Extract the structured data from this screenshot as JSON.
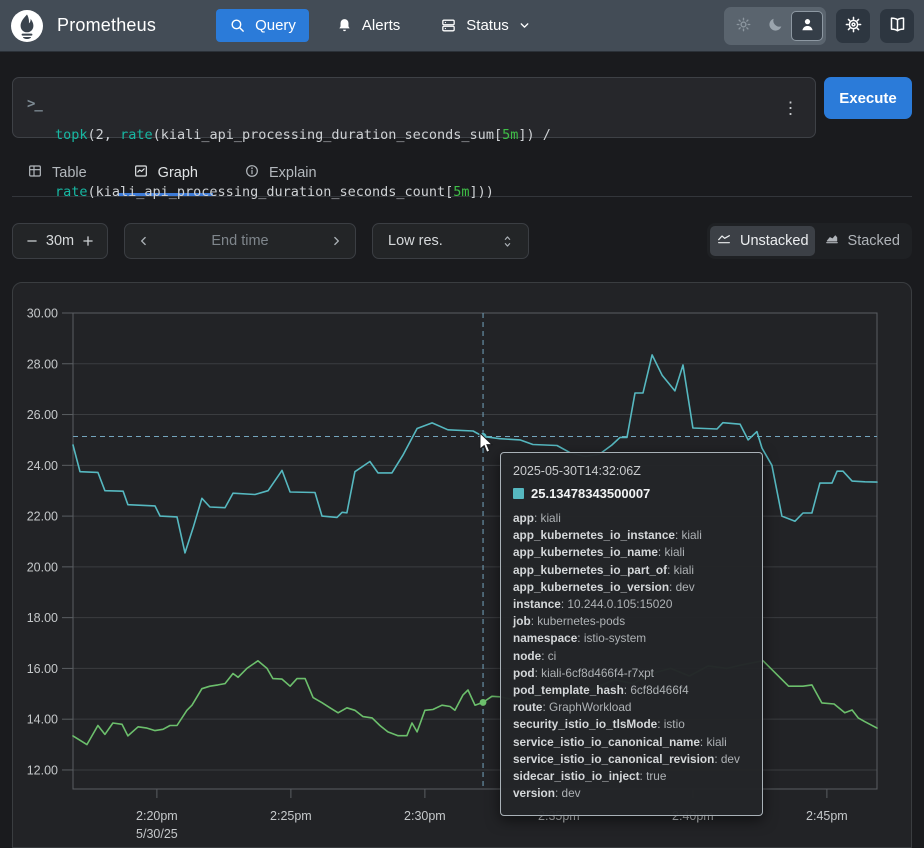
{
  "navbar": {
    "brand": "Prometheus",
    "query_label": "Query",
    "alerts_label": "Alerts",
    "status_label": "Status"
  },
  "icons": {
    "logo": "prometheus-torch",
    "query": "magnifier",
    "alerts": "bell",
    "status": "server-stack",
    "status_caret": "chevron-down",
    "theme_light": "sun",
    "theme_dark": "moon",
    "theme_user": "user-silhouette",
    "settings": "gear",
    "docs": "open-book",
    "editor_prompt": "terminal-prompt",
    "editor_menu": "kebab-vertical",
    "tab_table": "table-grid",
    "tab_graph": "chart-line-box",
    "tab_explain": "info-circle",
    "duration_minus": "minus",
    "duration_plus": "plus",
    "end_time_prev": "chevron-left",
    "end_time_next": "chevron-right",
    "resolution": "chevron-up-down",
    "unstacked": "line-chart",
    "stacked": "area-chart"
  },
  "colors": {
    "page_bg": "#1a1b1e",
    "navbar_bg": "#434c56",
    "accent_blue": "#2b7bd9",
    "tab_underline": "#3d7bd8",
    "series_teal": "#56b8c0",
    "series_green": "#6cbf6c",
    "crosshair": "#74a5bd",
    "code_function": "#17b8a3",
    "code_duration": "#3fbf47"
  },
  "query_panel": {
    "prompt": ">_",
    "expression": "topk(2, rate(kiali_api_processing_duration_seconds_sum[5m]) / rate(kiali_api_processing_duration_seconds_count[5m]))",
    "lines": [
      [
        {
          "t": "topk",
          "c": "fn"
        },
        {
          "t": "(",
          "c": "p"
        },
        {
          "t": "2",
          "c": "p"
        },
        {
          "t": ", ",
          "c": "p"
        },
        {
          "t": "rate",
          "c": "fn"
        },
        {
          "t": "(kiali_api_processing_duration_seconds_sum[",
          "c": "p"
        },
        {
          "t": "5m",
          "c": "dur"
        },
        {
          "t": "]) /",
          "c": "p"
        }
      ],
      [
        {
          "t": "rate",
          "c": "fn"
        },
        {
          "t": "(kiali_api_processing_duration_seconds_count[",
          "c": "p"
        },
        {
          "t": "5m",
          "c": "dur"
        },
        {
          "t": "]))",
          "c": "p"
        }
      ]
    ],
    "menu_glyph": "⋮",
    "execute_label": "Execute"
  },
  "tabs": {
    "table": "Table",
    "graph": "Graph",
    "explain": "Explain",
    "active": "Graph"
  },
  "controls": {
    "minus": "−",
    "duration": "30m",
    "plus": "+",
    "end_time_placeholder": "End time",
    "resolution": "Low res.",
    "unstacked": "Unstacked",
    "stacked": "Stacked",
    "stack_mode": "Unstacked"
  },
  "chart_data": {
    "type": "line",
    "x_axis_date": "5/30/25",
    "x_ticks": [
      {
        "label": "2:20pm",
        "t": 3.13
      },
      {
        "label": "2:25pm",
        "t": 8.13
      },
      {
        "label": "2:30pm",
        "t": 13.13
      },
      {
        "label": "2:35pm",
        "t": 18.13
      },
      {
        "label": "2:40pm",
        "t": 23.13
      },
      {
        "label": "2:45pm",
        "t": 28.13
      }
    ],
    "y_ticks": [
      "30.00",
      "28.00",
      "26.00",
      "24.00",
      "22.00",
      "20.00",
      "18.00",
      "16.00",
      "14.00",
      "12.00"
    ],
    "x_range_minutes": 30,
    "ylim": [
      11.25,
      30.0
    ],
    "grid": true,
    "legend": "none",
    "series": [
      {
        "name": "series-teal",
        "color": "#56b8c0",
        "points": [
          [
            0,
            24.8
          ],
          [
            0.26,
            23.75
          ],
          [
            0.93,
            23.72
          ],
          [
            1.19,
            23.0
          ],
          [
            1.87,
            22.98
          ],
          [
            2.05,
            22.45
          ],
          [
            3.06,
            22.4
          ],
          [
            3.25,
            22.0
          ],
          [
            3.88,
            21.97
          ],
          [
            4.18,
            20.55
          ],
          [
            4.5,
            21.6
          ],
          [
            4.81,
            22.7
          ],
          [
            5.11,
            22.36
          ],
          [
            5.67,
            22.33
          ],
          [
            5.97,
            22.9
          ],
          [
            6.79,
            22.85
          ],
          [
            7.28,
            23.0
          ],
          [
            7.8,
            23.8
          ],
          [
            8.1,
            22.95
          ],
          [
            9.03,
            22.93
          ],
          [
            9.29,
            22.0
          ],
          [
            9.85,
            21.95
          ],
          [
            10.04,
            22.15
          ],
          [
            10.22,
            22.13
          ],
          [
            10.52,
            23.75
          ],
          [
            11.08,
            24.15
          ],
          [
            11.38,
            23.7
          ],
          [
            11.9,
            23.7
          ],
          [
            12.31,
            24.4
          ],
          [
            12.84,
            25.45
          ],
          [
            13.4,
            25.67
          ],
          [
            13.99,
            25.4
          ],
          [
            14.93,
            25.35
          ],
          [
            15.3,
            25.135
          ],
          [
            15.93,
            25.05
          ],
          [
            16.68,
            25.0
          ],
          [
            17.16,
            24.82
          ],
          [
            18.06,
            24.78
          ],
          [
            18.54,
            24.5
          ],
          [
            19.1,
            24.35
          ],
          [
            19.66,
            24.45
          ],
          [
            20.11,
            24.8
          ],
          [
            20.41,
            25.1
          ],
          [
            20.67,
            25.1
          ],
          [
            20.97,
            26.85
          ],
          [
            21.27,
            26.85
          ],
          [
            21.61,
            28.35
          ],
          [
            21.98,
            27.55
          ],
          [
            22.46,
            26.93
          ],
          [
            22.76,
            27.95
          ],
          [
            23.13,
            25.47
          ],
          [
            24.03,
            25.43
          ],
          [
            24.25,
            25.68
          ],
          [
            24.89,
            25.62
          ],
          [
            25.19,
            25.0
          ],
          [
            25.52,
            25.33
          ],
          [
            25.71,
            24.68
          ],
          [
            26.08,
            24.0
          ],
          [
            26.45,
            22.0
          ],
          [
            26.94,
            21.8
          ],
          [
            27.24,
            22.12
          ],
          [
            27.57,
            22.12
          ],
          [
            27.87,
            23.3
          ],
          [
            28.32,
            23.3
          ],
          [
            28.51,
            23.77
          ],
          [
            28.73,
            23.77
          ],
          [
            29.07,
            23.38
          ],
          [
            29.55,
            23.35
          ],
          [
            30,
            23.34
          ]
        ]
      },
      {
        "name": "series-green",
        "color": "#6cbf6c",
        "points": [
          [
            0,
            13.34
          ],
          [
            0.52,
            13.0
          ],
          [
            0.93,
            13.75
          ],
          [
            1.19,
            13.4
          ],
          [
            1.49,
            13.85
          ],
          [
            1.83,
            13.8
          ],
          [
            2.05,
            13.34
          ],
          [
            2.43,
            13.7
          ],
          [
            2.76,
            13.65
          ],
          [
            3.06,
            13.55
          ],
          [
            3.36,
            13.6
          ],
          [
            3.62,
            13.75
          ],
          [
            3.88,
            13.75
          ],
          [
            4.25,
            14.35
          ],
          [
            4.44,
            14.55
          ],
          [
            4.81,
            15.2
          ],
          [
            5.11,
            15.3
          ],
          [
            5.41,
            15.35
          ],
          [
            5.67,
            15.4
          ],
          [
            5.97,
            15.8
          ],
          [
            6.16,
            15.65
          ],
          [
            6.49,
            16.0
          ],
          [
            6.9,
            16.3
          ],
          [
            7.24,
            16.0
          ],
          [
            7.46,
            15.6
          ],
          [
            7.8,
            15.58
          ],
          [
            8.1,
            15.3
          ],
          [
            8.36,
            15.6
          ],
          [
            8.66,
            15.6
          ],
          [
            8.96,
            14.85
          ],
          [
            9.29,
            14.65
          ],
          [
            9.59,
            14.45
          ],
          [
            9.89,
            14.25
          ],
          [
            10.22,
            14.45
          ],
          [
            10.52,
            14.35
          ],
          [
            10.82,
            14.1
          ],
          [
            11.16,
            14.05
          ],
          [
            11.45,
            13.75
          ],
          [
            11.75,
            13.5
          ],
          [
            12.13,
            13.35
          ],
          [
            12.46,
            13.35
          ],
          [
            12.65,
            13.85
          ],
          [
            12.84,
            13.5
          ],
          [
            13.13,
            14.35
          ],
          [
            13.43,
            14.38
          ],
          [
            13.77,
            14.55
          ],
          [
            14.07,
            14.5
          ],
          [
            14.25,
            14.35
          ],
          [
            14.55,
            14.95
          ],
          [
            14.74,
            15.15
          ],
          [
            15.0,
            14.55
          ],
          [
            15.3,
            14.66
          ],
          [
            15.63,
            14.9
          ],
          [
            15.93,
            14.88
          ],
          [
            16.7,
            14.7
          ],
          [
            17.4,
            14.95
          ],
          [
            18.1,
            15.1
          ],
          [
            18.8,
            14.9
          ],
          [
            19.5,
            15.25
          ],
          [
            20.2,
            15.55
          ],
          [
            20.9,
            15.4
          ],
          [
            21.6,
            15.8
          ],
          [
            22.3,
            16.0
          ],
          [
            23.0,
            15.7
          ],
          [
            23.7,
            16.1
          ],
          [
            24.4,
            16.0
          ],
          [
            25.0,
            16.15
          ],
          [
            25.75,
            16.3
          ],
          [
            26.7,
            15.3
          ],
          [
            27.24,
            15.3
          ],
          [
            27.57,
            15.35
          ],
          [
            27.94,
            14.64
          ],
          [
            28.4,
            14.6
          ],
          [
            28.8,
            14.25
          ],
          [
            29.07,
            14.36
          ],
          [
            29.3,
            14.05
          ],
          [
            29.55,
            13.9
          ],
          [
            30,
            13.65
          ]
        ]
      }
    ],
    "crosshair": {
      "t": 15.3,
      "teal_value": 25.135,
      "green_value": 14.66
    }
  },
  "tooltip": {
    "timestamp": "2025-05-30T14:32:06Z",
    "value": "25.13478343500007",
    "swatch_color": "#56b8c0",
    "labels": [
      {
        "key": "app",
        "value": "kiali"
      },
      {
        "key": "app_kubernetes_io_instance",
        "value": "kiali"
      },
      {
        "key": "app_kubernetes_io_name",
        "value": "kiali"
      },
      {
        "key": "app_kubernetes_io_part_of",
        "value": "kiali"
      },
      {
        "key": "app_kubernetes_io_version",
        "value": "dev"
      },
      {
        "key": "instance",
        "value": "10.244.0.105:15020"
      },
      {
        "key": "job",
        "value": "kubernetes-pods"
      },
      {
        "key": "namespace",
        "value": "istio-system"
      },
      {
        "key": "node",
        "value": "ci"
      },
      {
        "key": "pod",
        "value": "kiali-6cf8d466f4-r7xpt"
      },
      {
        "key": "pod_template_hash",
        "value": "6cf8d466f4"
      },
      {
        "key": "route",
        "value": "GraphWorkload"
      },
      {
        "key": "security_istio_io_tlsMode",
        "value": "istio"
      },
      {
        "key": "service_istio_io_canonical_name",
        "value": "kiali"
      },
      {
        "key": "service_istio_io_canonical_revision",
        "value": "dev"
      },
      {
        "key": "sidecar_istio_io_inject",
        "value": "true"
      },
      {
        "key": "version",
        "value": "dev"
      }
    ]
  }
}
